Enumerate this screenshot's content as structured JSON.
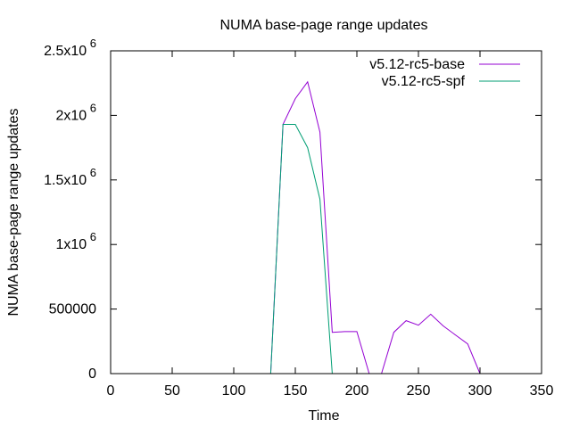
{
  "chart_data": {
    "type": "line",
    "title": "NUMA base-page range updates",
    "xlabel": "Time",
    "ylabel": "NUMA base-page range updates",
    "xlim": [
      0,
      350
    ],
    "ylim": [
      0,
      2500000
    ],
    "grid": false,
    "legend_position": "top-right",
    "x_ticks": [
      {
        "value": 0,
        "label": "0"
      },
      {
        "value": 50,
        "label": "50"
      },
      {
        "value": 100,
        "label": "100"
      },
      {
        "value": 150,
        "label": "150"
      },
      {
        "value": 200,
        "label": "200"
      },
      {
        "value": 250,
        "label": "250"
      },
      {
        "value": 300,
        "label": "300"
      },
      {
        "value": 350,
        "label": "350"
      }
    ],
    "y_ticks": [
      {
        "value": 0,
        "mantissa": "0",
        "exponent": ""
      },
      {
        "value": 500000,
        "mantissa": "500000",
        "exponent": ""
      },
      {
        "value": 1000000,
        "mantissa": "1x10",
        "exponent": "6"
      },
      {
        "value": 1500000,
        "mantissa": "1.5x10",
        "exponent": "6"
      },
      {
        "value": 2000000,
        "mantissa": "2x10",
        "exponent": "6"
      },
      {
        "value": 2500000,
        "mantissa": "2.5x10",
        "exponent": "6"
      }
    ],
    "series": [
      {
        "name": "v5.12-rc5-base",
        "color": "#9400d3",
        "x": [
          130,
          140,
          150,
          160,
          170,
          180,
          190,
          200,
          210,
          220,
          230,
          240,
          250,
          260,
          270,
          280,
          290,
          300
        ],
        "y": [
          0,
          1930000,
          2130000,
          2260000,
          1870000,
          320000,
          325000,
          325000,
          0,
          0,
          320000,
          410000,
          375000,
          460000,
          370000,
          300000,
          230000,
          0
        ]
      },
      {
        "name": "v5.12-rc5-spf",
        "color": "#009e73",
        "x": [
          130,
          140,
          150,
          160,
          170,
          180
        ],
        "y": [
          0,
          1930000,
          1930000,
          1750000,
          1350000,
          0
        ]
      }
    ]
  }
}
